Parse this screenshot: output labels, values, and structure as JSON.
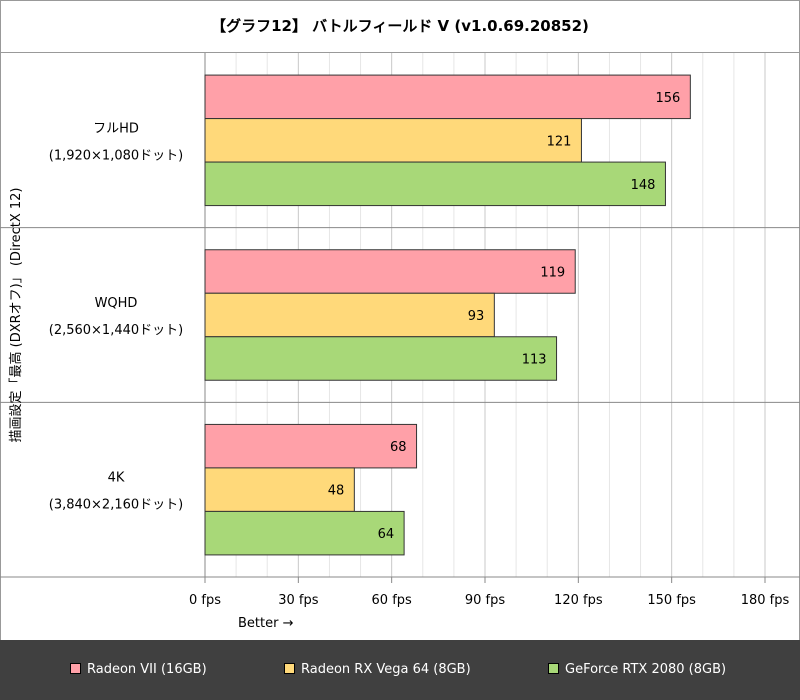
{
  "title": "【グラフ12】 バトルフィールド V (v1.0.69.20852)",
  "chart_data": {
    "type": "bar",
    "orientation": "horizontal",
    "title": "【グラフ12】 バトルフィールド V (v1.0.69.20852)",
    "ylabel": "描画設定「最高 (DXRオフ)」 (DirectX 12)",
    "xlabel": "Better →",
    "xlim": [
      0,
      180
    ],
    "xticks": [
      0,
      30,
      60,
      90,
      120,
      150,
      180
    ],
    "tick_suffix": " fps",
    "minor_grid_step": 10,
    "categories": [
      {
        "name": "フルHD",
        "sub": "(1,920×1,080ドット)"
      },
      {
        "name": "WQHD",
        "sub": "(2,560×1,440ドット)"
      },
      {
        "name": "4K",
        "sub": "(3,840×2,160ドット)"
      }
    ],
    "series": [
      {
        "name": "Radeon VII (16GB)",
        "color": "#ffa0a8",
        "values": [
          156,
          119,
          68
        ]
      },
      {
        "name": "Radeon RX Vega 64 (8GB)",
        "color": "#ffd97a",
        "values": [
          121,
          93,
          48
        ]
      },
      {
        "name": "GeForce RTX 2080 (8GB)",
        "color": "#a8d878",
        "values": [
          148,
          113,
          64
        ]
      }
    ]
  }
}
